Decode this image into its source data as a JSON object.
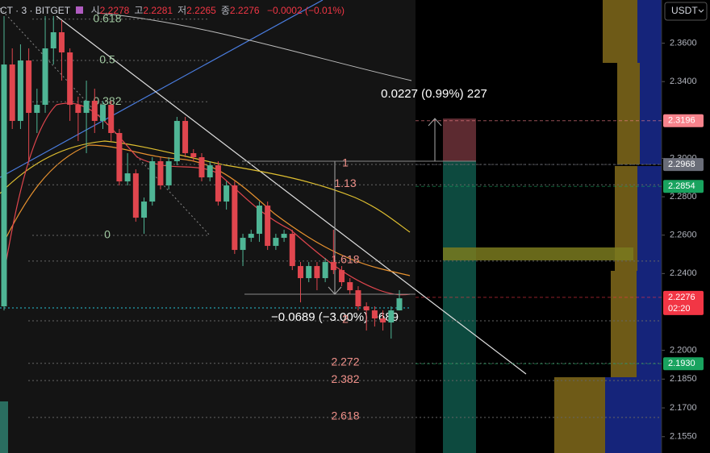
{
  "chart_data": {
    "type": "candlestick",
    "title": "CT · 3 · BITGET",
    "currency": "USDT",
    "ohlc_header": [
      {
        "label": "시",
        "value": 2.2278
      },
      {
        "label": "고",
        "value": 2.2281
      },
      {
        "label": "저",
        "value": 2.2265
      },
      {
        "label": "종",
        "value": 2.2276
      }
    ],
    "change": "−0.0002 (−0.01%)",
    "open": [
      2.2229,
      2.3489,
      2.3195,
      2.351,
      2.3237,
      2.3279,
      2.3573,
      2.3657,
      2.3552,
      2.3279,
      2.3237,
      2.33,
      2.3195,
      2.3279,
      2.3132,
      2.288,
      2.2922,
      2.2691,
      2.2775,
      2.2985,
      2.2859,
      2.2985,
      2.3195,
      2.3027,
      2.3006,
      2.2901,
      2.2964,
      2.2775,
      2.2859,
      2.2523,
      2.2586,
      2.2607,
      2.2754,
      2.2544,
      2.2586,
      2.2607,
      2.2439,
      2.2376,
      2.2439,
      2.2376,
      2.246,
      2.2418,
      2.2355,
      2.2313,
      2.2229,
      2.2208,
      2.2166,
      2.2145,
      2.2208
    ],
    "high": [
      2.3741,
      2.3573,
      2.3594,
      2.3573,
      2.3363,
      2.3741,
      2.3741,
      2.372,
      2.3573,
      2.3321,
      2.3405,
      2.3363,
      2.33,
      2.33,
      2.3153,
      2.3027,
      2.2943,
      2.2796,
      2.3006,
      2.3006,
      2.3006,
      2.3216,
      2.3216,
      2.3048,
      2.3027,
      2.2985,
      2.2985,
      2.288,
      2.288,
      2.2607,
      2.2628,
      2.2775,
      2.2775,
      2.2607,
      2.2628,
      2.2628,
      2.246,
      2.246,
      2.246,
      2.2481,
      2.2628,
      2.2439,
      2.2376,
      2.2334,
      2.225,
      2.2229,
      2.2208,
      2.2229,
      2.2313
    ],
    "low": [
      2.2208,
      2.3153,
      2.3153,
      2.2985,
      2.3132,
      2.3237,
      2.3489,
      2.3405,
      2.3195,
      2.309,
      2.3027,
      2.3132,
      2.3153,
      2.309,
      2.2859,
      2.2859,
      2.267,
      2.2607,
      2.2754,
      2.2838,
      2.2838,
      2.2964,
      2.3006,
      2.2985,
      2.288,
      2.288,
      2.2754,
      2.2733,
      2.2502,
      2.2439,
      2.2565,
      2.2565,
      2.2523,
      2.2523,
      2.2565,
      2.2418,
      2.225,
      2.2355,
      2.2313,
      2.2355,
      2.2397,
      2.2334,
      2.2292,
      2.2208,
      2.2103,
      2.2124,
      2.2103,
      2.2061,
      2.2208
    ],
    "close": [
      2.3489,
      2.3195,
      2.351,
      2.3237,
      2.3279,
      2.3573,
      2.3657,
      2.3552,
      2.3279,
      2.3237,
      2.33,
      2.3195,
      2.3279,
      2.3132,
      2.288,
      2.2922,
      2.2691,
      2.2775,
      2.2985,
      2.2859,
      2.2985,
      2.3195,
      2.3027,
      2.3006,
      2.2901,
      2.2964,
      2.2775,
      2.2859,
      2.2523,
      2.2586,
      2.2607,
      2.2754,
      2.2544,
      2.2586,
      2.2607,
      2.2439,
      2.2376,
      2.2439,
      2.2376,
      2.246,
      2.2418,
      2.2355,
      2.2313,
      2.2229,
      2.2208,
      2.2166,
      2.2145,
      2.2208,
      2.2271
    ],
    "up_color": "#4fb595",
    "down_color": "#e0464e",
    "ylim": [
      2.1465,
      2.3825
    ],
    "yticks": [
      {
        "value": 2.36,
        "label": "2.3600"
      },
      {
        "value": 2.34,
        "label": "2.3400"
      },
      {
        "value": 2.3,
        "label": "2.3000"
      },
      {
        "value": 2.28,
        "label": "2.2800"
      },
      {
        "value": 2.26,
        "label": "2.2600"
      },
      {
        "value": 2.24,
        "label": "2.2400"
      },
      {
        "value": 2.2,
        "label": "2.2000"
      },
      {
        "value": 2.185,
        "label": "2.1850"
      },
      {
        "value": 2.17,
        "label": "2.1700"
      },
      {
        "value": 2.155,
        "label": "2.1550"
      }
    ],
    "price_labels": [
      {
        "value": 2.3196,
        "color": "#f7838c"
      },
      {
        "value": 2.2968,
        "color": "#6a6d78"
      },
      {
        "value": 2.2854,
        "color": "#19a35f"
      },
      {
        "value": 2.2276,
        "color": "#f23645"
      },
      {
        "value": 2.193,
        "label": "2.1930",
        "color": "#19a35f"
      }
    ],
    "countdown": "02:20",
    "fib_retracement": {
      "levels": [
        0.618,
        0.5,
        0.382,
        0
      ],
      "color": "#9fc79f"
    },
    "fib_extension": {
      "levels": [
        1,
        1.13,
        1.618,
        2,
        2.272,
        2.382,
        2.618
      ],
      "color": "#f0918a"
    },
    "measures": [
      "0.0227 (0.99%) 227",
      "−0.0689 (−3.00%) −689"
    ]
  }
}
